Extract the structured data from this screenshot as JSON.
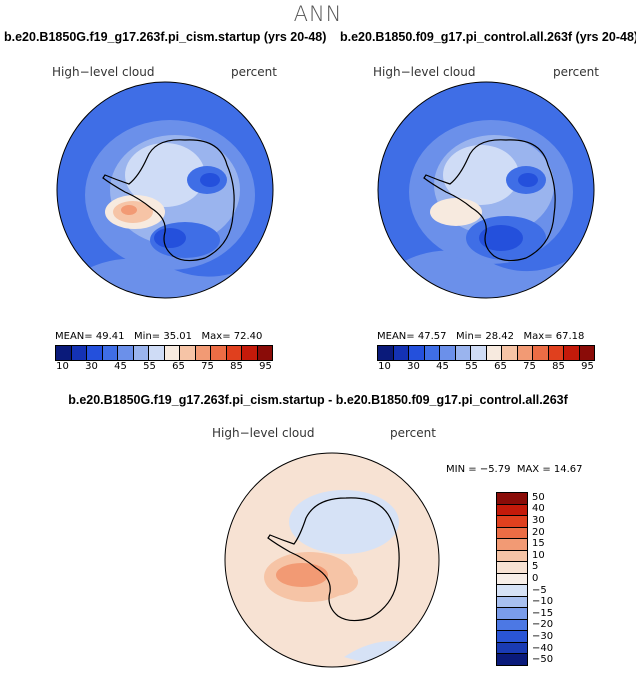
{
  "figure_title": "ANN",
  "panels": [
    {
      "case": "b.e20.B1850G.f19_g17.263f.pi_cism.startup (yrs 20-48)",
      "variable": "High−level cloud",
      "units": "percent",
      "mean_label": "MEAN=",
      "mean": "49.41",
      "min_label": "Min=",
      "min": "35.01",
      "max_label": "Max=",
      "max": "72.40"
    },
    {
      "case": "b.e20.B1850.f09_g17.pi_control.all.263f (yrs 20-48)",
      "variable": "High−level cloud",
      "units": "percent",
      "mean_label": "MEAN=",
      "mean": "47.57",
      "min_label": "Min=",
      "min": "28.42",
      "max_label": "Max=",
      "max": "67.18"
    }
  ],
  "colorbar_top": {
    "colors": [
      "#0a1a7a",
      "#1432b4",
      "#2450dc",
      "#3f6ee6",
      "#6b90ea",
      "#9ab4ee",
      "#cfdcf6",
      "#f7eadf",
      "#f6c4a6",
      "#f29a74",
      "#ec6d45",
      "#e0401e",
      "#c41a0a",
      "#8a0c08"
    ],
    "tick_labels": [
      "10",
      "30",
      "45",
      "55",
      "65",
      "75",
      "85",
      "95"
    ]
  },
  "diff": {
    "title": "b.e20.B1850G.f19_g17.263f.pi_cism.startup - b.e20.B1850.f09_g17.pi_control.all.263f",
    "variable": "High−level cloud",
    "units": "percent",
    "min_label": "MIN =",
    "min": "−5.79",
    "max_label": "MAX =",
    "max": "14.67"
  },
  "colorbar_diff": {
    "colors": [
      "#8a0c08",
      "#c41a0a",
      "#e0401e",
      "#ec6d45",
      "#f29a74",
      "#f6c4a6",
      "#f7e2d3",
      "#f7eee8",
      "#d6e2f6",
      "#a8c0f0",
      "#7a9cea",
      "#4c78e4",
      "#2a55d6",
      "#1a3bb4",
      "#0a1a7a"
    ],
    "tick_labels": [
      "50",
      "40",
      "30",
      "20",
      "15",
      "10",
      "5",
      "0",
      "−5",
      "−10",
      "−15",
      "−20",
      "−30",
      "−40",
      "−50"
    ]
  }
}
